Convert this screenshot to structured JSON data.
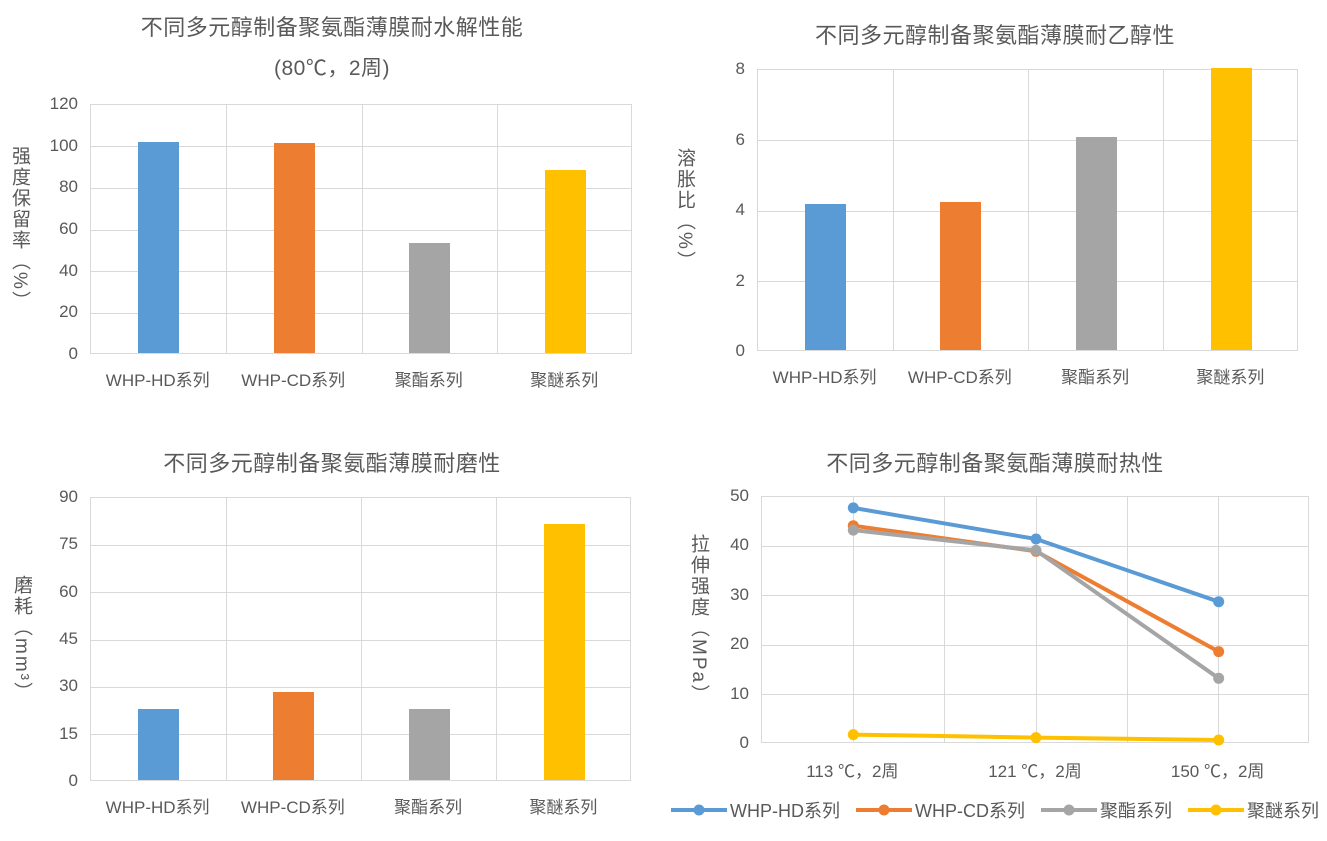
{
  "colors": {
    "series_blue": "#5B9BD5",
    "series_orange": "#ED7D31",
    "series_gray": "#A5A5A5",
    "series_yellow": "#FFC000",
    "text": "#595959",
    "gridline": "#D9D9D9"
  },
  "chart_data": [
    {
      "type": "bar",
      "title": "不同多元醇制备聚氨酯薄膜耐水解性能",
      "subtitle": "(80℃，2周)",
      "ylabel": "强度保留率（%）",
      "xlabel": "",
      "categories": [
        "WHP-HD系列",
        "WHP-CD系列",
        "聚酯系列",
        "聚醚系列"
      ],
      "values": [
        101.5,
        101,
        53,
        88
      ],
      "bar_colors": [
        "#5B9BD5",
        "#ED7D31",
        "#A5A5A5",
        "#FFC000"
      ],
      "ylim": [
        0,
        120
      ],
      "ytick_step": 20,
      "grid": true
    },
    {
      "type": "bar",
      "title": "不同多元醇制备聚氨酯薄膜耐乙醇性",
      "subtitle": "",
      "ylabel": "溶胀比（%）",
      "xlabel": "",
      "categories": [
        "WHP-HD系列",
        "WHP-CD系列",
        "聚酯系列",
        "聚醚系列"
      ],
      "values": [
        4.15,
        4.2,
        6.05,
        8
      ],
      "bar_colors": [
        "#5B9BD5",
        "#ED7D31",
        "#A5A5A5",
        "#FFC000"
      ],
      "ylim": [
        0,
        8
      ],
      "ytick_step": 2,
      "grid": true
    },
    {
      "type": "bar",
      "title": "不同多元醇制备聚氨酯薄膜耐磨性",
      "subtitle": "",
      "ylabel": "磨耗（mm³）",
      "xlabel": "",
      "categories": [
        "WHP-HD系列",
        "WHP-CD系列",
        "聚酯系列",
        "聚醚系列"
      ],
      "values": [
        22.5,
        28,
        22.5,
        81
      ],
      "bar_colors": [
        "#5B9BD5",
        "#ED7D31",
        "#A5A5A5",
        "#FFC000"
      ],
      "ylim": [
        0,
        90
      ],
      "ytick_step": 15,
      "grid": true
    },
    {
      "type": "line",
      "title": "不同多元醇制备聚氨酯薄膜耐热性",
      "subtitle": "",
      "ylabel": "拉伸强度（MPa）",
      "xlabel": "",
      "categories": [
        "113 ℃，2周",
        "121 ℃，2周",
        "150 ℃，2周"
      ],
      "series": [
        {
          "name": "WHP-HD系列",
          "color": "#5B9BD5",
          "values": [
            47.8,
            41.5,
            28.8
          ]
        },
        {
          "name": "WHP-CD系列",
          "color": "#ED7D31",
          "values": [
            44.2,
            39.0,
            18.7
          ]
        },
        {
          "name": "聚酯系列",
          "color": "#A5A5A5",
          "values": [
            43.3,
            39.2,
            13.3
          ]
        },
        {
          "name": "聚醚系列",
          "color": "#FFC000",
          "values": [
            1.9,
            1.3,
            0.8
          ]
        }
      ],
      "ylim": [
        0,
        50
      ],
      "ytick_step": 10,
      "grid": true,
      "legend_position": "bottom"
    }
  ]
}
